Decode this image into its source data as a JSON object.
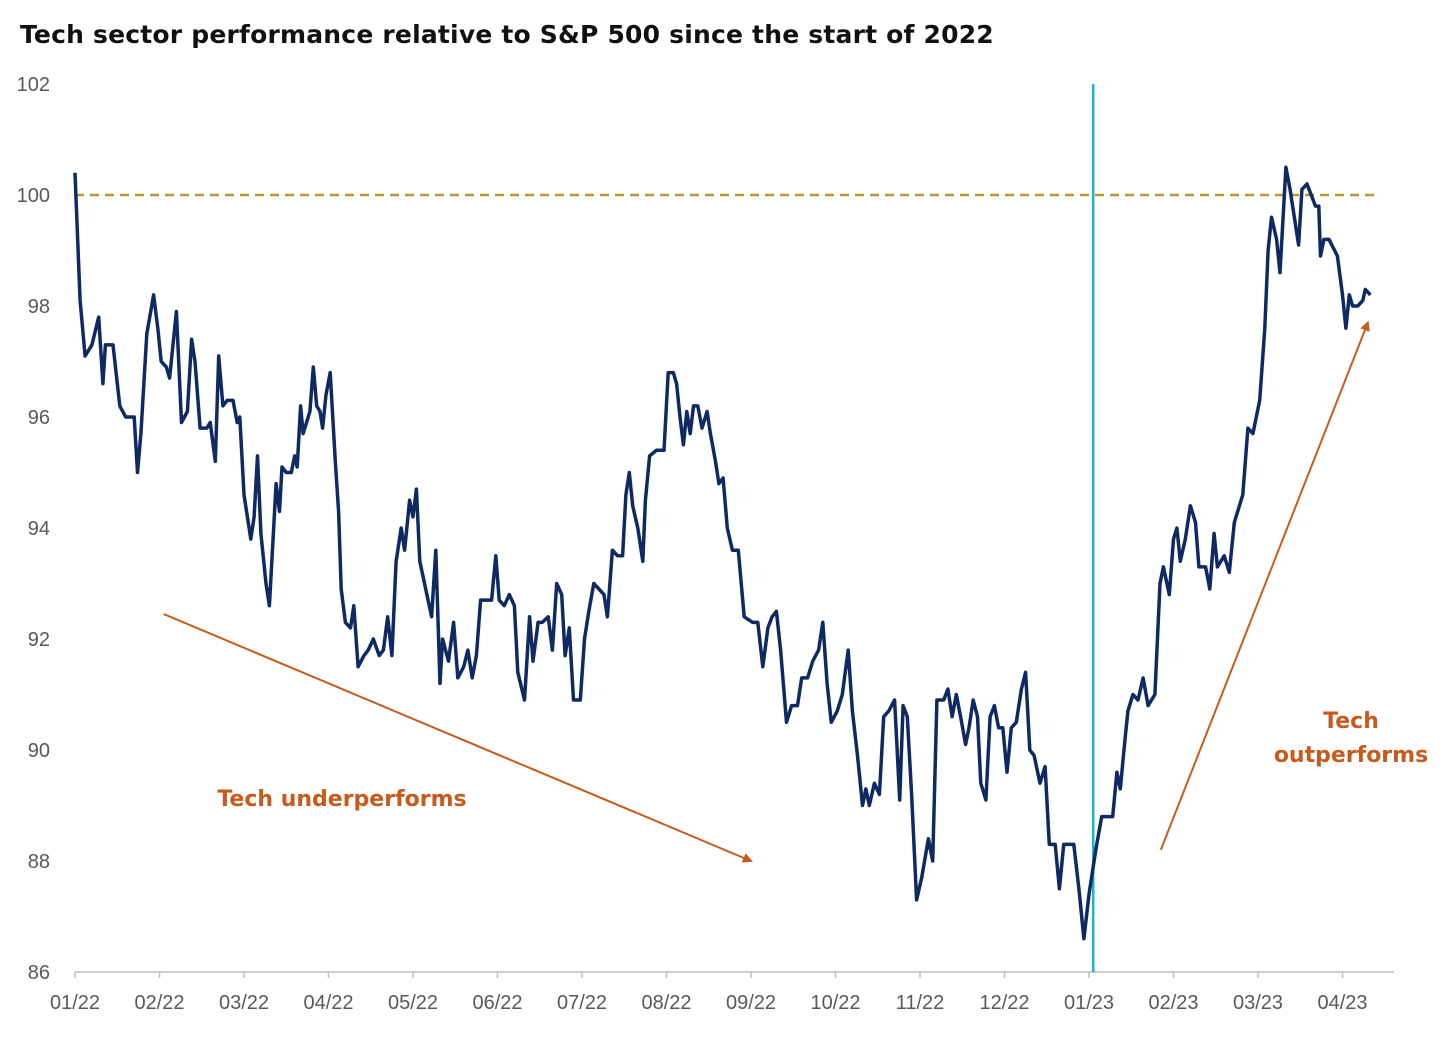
{
  "colors": {
    "series": "#0f2a63",
    "reference_line": "#b89a2a",
    "marker_line": "#14b7cf",
    "annotation": "#c75b1e",
    "axis": "#bfbfbf"
  },
  "chart_data": {
    "type": "line",
    "title": "Tech sector performance relative to S&P 500 since the start of 2022",
    "xlabel": "",
    "ylabel": "",
    "ylim": [
      86,
      102
    ],
    "y_ticks": [
      "102",
      "100",
      "98",
      "96",
      "94",
      "92",
      "90",
      "88",
      "86"
    ],
    "x_ticks": [
      "01/22",
      "02/22",
      "03/22",
      "04/22",
      "05/22",
      "06/22",
      "07/22",
      "08/22",
      "09/22",
      "10/22",
      "11/22",
      "12/22",
      "01/23",
      "02/23",
      "03/23",
      "04/23"
    ],
    "x_unit": "month index (0 = 01/22)",
    "xlim": [
      0,
      15.6
    ],
    "reference_line": {
      "y": 100,
      "style": "dashed"
    },
    "vertical_marker": {
      "x": 12.05
    },
    "grid": false,
    "series": [
      {
        "values": [
          [
            0.0,
            100.4
          ],
          [
            0.06,
            98.1
          ],
          [
            0.12,
            97.1
          ],
          [
            0.2,
            97.3
          ],
          [
            0.28,
            97.8
          ],
          [
            0.33,
            96.6
          ],
          [
            0.36,
            97.3
          ],
          [
            0.45,
            97.3
          ],
          [
            0.53,
            96.2
          ],
          [
            0.6,
            96.0
          ],
          [
            0.7,
            96.0
          ],
          [
            0.74,
            95.0
          ],
          [
            0.78,
            95.7
          ],
          [
            0.85,
            97.5
          ],
          [
            0.93,
            98.2
          ],
          [
            0.98,
            97.6
          ],
          [
            1.02,
            97.0
          ],
          [
            1.08,
            96.9
          ],
          [
            1.12,
            96.7
          ],
          [
            1.2,
            97.9
          ],
          [
            1.26,
            95.9
          ],
          [
            1.33,
            96.1
          ],
          [
            1.38,
            97.4
          ],
          [
            1.42,
            97.0
          ],
          [
            1.48,
            95.8
          ],
          [
            1.56,
            95.8
          ],
          [
            1.6,
            95.9
          ],
          [
            1.66,
            95.2
          ],
          [
            1.7,
            97.1
          ],
          [
            1.75,
            96.2
          ],
          [
            1.8,
            96.3
          ],
          [
            1.87,
            96.3
          ],
          [
            1.92,
            95.9
          ],
          [
            1.95,
            96.0
          ],
          [
            2.0,
            94.6
          ],
          [
            2.08,
            93.8
          ],
          [
            2.12,
            94.2
          ],
          [
            2.16,
            95.3
          ],
          [
            2.2,
            93.9
          ],
          [
            2.26,
            93.0
          ],
          [
            2.3,
            92.6
          ],
          [
            2.38,
            94.8
          ],
          [
            2.42,
            94.3
          ],
          [
            2.45,
            95.1
          ],
          [
            2.5,
            95.0
          ],
          [
            2.56,
            95.0
          ],
          [
            2.6,
            95.3
          ],
          [
            2.63,
            95.1
          ],
          [
            2.67,
            96.2
          ],
          [
            2.7,
            95.7
          ],
          [
            2.78,
            96.1
          ],
          [
            2.82,
            96.9
          ],
          [
            2.86,
            96.2
          ],
          [
            2.9,
            96.1
          ],
          [
            2.93,
            95.8
          ],
          [
            2.97,
            96.4
          ],
          [
            3.02,
            96.8
          ],
          [
            3.08,
            95.2
          ],
          [
            3.12,
            94.3
          ],
          [
            3.15,
            92.9
          ],
          [
            3.2,
            92.3
          ],
          [
            3.26,
            92.2
          ],
          [
            3.3,
            92.6
          ],
          [
            3.35,
            91.5
          ],
          [
            3.42,
            91.7
          ],
          [
            3.47,
            91.8
          ],
          [
            3.53,
            92.0
          ],
          [
            3.6,
            91.7
          ],
          [
            3.65,
            91.8
          ],
          [
            3.7,
            92.4
          ],
          [
            3.75,
            91.7
          ],
          [
            3.8,
            93.4
          ],
          [
            3.86,
            94.0
          ],
          [
            3.9,
            93.6
          ],
          [
            3.96,
            94.5
          ],
          [
            4.0,
            94.2
          ],
          [
            4.04,
            94.7
          ],
          [
            4.08,
            93.4
          ],
          [
            4.15,
            92.9
          ],
          [
            4.22,
            92.4
          ],
          [
            4.27,
            93.6
          ],
          [
            4.32,
            91.2
          ],
          [
            4.35,
            92.0
          ],
          [
            4.42,
            91.6
          ],
          [
            4.48,
            92.3
          ],
          [
            4.53,
            91.3
          ],
          [
            4.6,
            91.5
          ],
          [
            4.65,
            91.8
          ],
          [
            4.7,
            91.3
          ],
          [
            4.75,
            91.7
          ],
          [
            4.8,
            92.7
          ],
          [
            4.88,
            92.7
          ],
          [
            4.93,
            92.7
          ],
          [
            4.98,
            93.5
          ],
          [
            5.02,
            92.7
          ],
          [
            5.08,
            92.6
          ],
          [
            5.14,
            92.8
          ],
          [
            5.2,
            92.6
          ],
          [
            5.24,
            91.4
          ],
          [
            5.32,
            90.9
          ],
          [
            5.38,
            92.4
          ],
          [
            5.42,
            91.6
          ],
          [
            5.48,
            92.3
          ],
          [
            5.53,
            92.3
          ],
          [
            5.6,
            92.4
          ],
          [
            5.65,
            91.8
          ],
          [
            5.7,
            93.0
          ],
          [
            5.76,
            92.8
          ],
          [
            5.8,
            91.7
          ],
          [
            5.85,
            92.2
          ],
          [
            5.9,
            90.9
          ],
          [
            5.98,
            90.9
          ],
          [
            6.03,
            92.0
          ],
          [
            6.08,
            92.5
          ],
          [
            6.14,
            93.0
          ],
          [
            6.2,
            92.9
          ],
          [
            6.26,
            92.8
          ],
          [
            6.3,
            92.4
          ],
          [
            6.36,
            93.6
          ],
          [
            6.42,
            93.5
          ],
          [
            6.48,
            93.5
          ],
          [
            6.52,
            94.6
          ],
          [
            6.56,
            95.0
          ],
          [
            6.6,
            94.4
          ],
          [
            6.66,
            94.0
          ],
          [
            6.72,
            93.4
          ],
          [
            6.75,
            94.5
          ],
          [
            6.8,
            95.3
          ],
          [
            6.88,
            95.4
          ],
          [
            6.97,
            95.4
          ],
          [
            7.02,
            96.8
          ],
          [
            7.08,
            96.8
          ],
          [
            7.12,
            96.6
          ],
          [
            7.16,
            96.0
          ],
          [
            7.2,
            95.5
          ],
          [
            7.24,
            96.1
          ],
          [
            7.28,
            95.7
          ],
          [
            7.32,
            96.2
          ],
          [
            7.37,
            96.2
          ],
          [
            7.42,
            95.8
          ],
          [
            7.48,
            96.1
          ],
          [
            7.52,
            95.7
          ],
          [
            7.58,
            95.2
          ],
          [
            7.62,
            94.8
          ],
          [
            7.67,
            94.9
          ],
          [
            7.72,
            94.0
          ],
          [
            7.78,
            93.6
          ],
          [
            7.85,
            93.6
          ],
          [
            7.92,
            92.4
          ],
          [
            8.02,
            92.3
          ],
          [
            8.08,
            92.3
          ],
          [
            8.14,
            91.5
          ],
          [
            8.2,
            92.2
          ],
          [
            8.25,
            92.4
          ],
          [
            8.3,
            92.5
          ],
          [
            8.35,
            91.8
          ],
          [
            8.42,
            90.5
          ],
          [
            8.48,
            90.8
          ],
          [
            8.55,
            90.8
          ],
          [
            8.6,
            91.3
          ],
          [
            8.67,
            91.3
          ],
          [
            8.73,
            91.6
          ],
          [
            8.8,
            91.8
          ],
          [
            8.85,
            92.3
          ],
          [
            8.9,
            91.2
          ],
          [
            8.95,
            90.5
          ],
          [
            9.02,
            90.7
          ],
          [
            9.08,
            91.0
          ],
          [
            9.15,
            91.8
          ],
          [
            9.2,
            90.7
          ],
          [
            9.26,
            89.9
          ],
          [
            9.32,
            89.0
          ],
          [
            9.36,
            89.3
          ],
          [
            9.4,
            89.0
          ],
          [
            9.46,
            89.4
          ],
          [
            9.52,
            89.2
          ],
          [
            9.57,
            90.6
          ],
          [
            9.63,
            90.7
          ],
          [
            9.7,
            90.9
          ],
          [
            9.76,
            89.1
          ],
          [
            9.8,
            90.8
          ],
          [
            9.85,
            90.6
          ],
          [
            9.9,
            89.2
          ],
          [
            9.96,
            87.3
          ],
          [
            10.02,
            87.7
          ],
          [
            10.1,
            88.4
          ],
          [
            10.15,
            88.0
          ],
          [
            10.2,
            90.9
          ],
          [
            10.28,
            90.9
          ],
          [
            10.33,
            91.1
          ],
          [
            10.38,
            90.6
          ],
          [
            10.43,
            91.0
          ],
          [
            10.48,
            90.6
          ],
          [
            10.54,
            90.1
          ],
          [
            10.58,
            90.4
          ],
          [
            10.63,
            90.9
          ],
          [
            10.68,
            90.6
          ],
          [
            10.72,
            89.4
          ],
          [
            10.78,
            89.1
          ],
          [
            10.83,
            90.6
          ],
          [
            10.88,
            90.8
          ],
          [
            10.93,
            90.4
          ],
          [
            10.98,
            90.4
          ],
          [
            11.03,
            89.6
          ],
          [
            11.08,
            90.4
          ],
          [
            11.14,
            90.5
          ],
          [
            11.2,
            91.1
          ],
          [
            11.25,
            91.4
          ],
          [
            11.3,
            90.0
          ],
          [
            11.35,
            89.9
          ],
          [
            11.42,
            89.4
          ],
          [
            11.48,
            89.7
          ],
          [
            11.53,
            88.3
          ],
          [
            11.6,
            88.3
          ],
          [
            11.65,
            87.5
          ],
          [
            11.7,
            88.3
          ],
          [
            11.75,
            88.3
          ],
          [
            11.82,
            88.3
          ],
          [
            11.88,
            87.5
          ],
          [
            11.94,
            86.6
          ],
          [
            12.0,
            87.4
          ],
          [
            12.08,
            88.2
          ],
          [
            12.15,
            88.8
          ],
          [
            12.22,
            88.8
          ],
          [
            12.28,
            88.8
          ],
          [
            12.33,
            89.6
          ],
          [
            12.37,
            89.3
          ],
          [
            12.42,
            90.1
          ],
          [
            12.46,
            90.7
          ],
          [
            12.52,
            91.0
          ],
          [
            12.58,
            90.9
          ],
          [
            12.64,
            91.3
          ],
          [
            12.7,
            90.8
          ],
          [
            12.78,
            91.0
          ],
          [
            12.84,
            93.0
          ],
          [
            12.88,
            93.3
          ],
          [
            12.95,
            92.8
          ],
          [
            13.0,
            93.8
          ],
          [
            13.04,
            94.0
          ],
          [
            13.08,
            93.4
          ],
          [
            13.14,
            93.8
          ],
          [
            13.2,
            94.4
          ],
          [
            13.26,
            94.1
          ],
          [
            13.3,
            93.3
          ],
          [
            13.38,
            93.3
          ],
          [
            13.43,
            92.9
          ],
          [
            13.48,
            93.9
          ],
          [
            13.52,
            93.3
          ],
          [
            13.6,
            93.5
          ],
          [
            13.66,
            93.2
          ],
          [
            13.72,
            94.1
          ],
          [
            13.82,
            94.6
          ],
          [
            13.88,
            95.8
          ],
          [
            13.94,
            95.7
          ],
          [
            14.02,
            96.3
          ],
          [
            14.08,
            97.6
          ],
          [
            14.12,
            99.0
          ],
          [
            14.16,
            99.6
          ],
          [
            14.22,
            99.2
          ],
          [
            14.26,
            98.6
          ],
          [
            14.33,
            100.5
          ],
          [
            14.38,
            100.1
          ],
          [
            14.44,
            99.5
          ],
          [
            14.48,
            99.1
          ],
          [
            14.52,
            100.1
          ],
          [
            14.58,
            100.2
          ],
          [
            14.63,
            100.0
          ],
          [
            14.68,
            99.8
          ],
          [
            14.72,
            99.8
          ],
          [
            14.74,
            98.9
          ],
          [
            14.78,
            99.2
          ],
          [
            14.84,
            99.2
          ],
          [
            14.94,
            98.9
          ],
          [
            15.0,
            98.2
          ],
          [
            15.04,
            97.6
          ],
          [
            15.08,
            98.2
          ],
          [
            15.12,
            98.0
          ],
          [
            15.18,
            98.0
          ],
          [
            15.24,
            98.1
          ],
          [
            15.27,
            98.3
          ],
          [
            15.33,
            98.2
          ]
        ]
      }
    ],
    "annotations": [
      {
        "text": "Tech underperforms"
      },
      {
        "text_line1": "Tech",
        "text_line2": "outperforms"
      }
    ],
    "trend_arrows": [
      {
        "from": [
          1.05,
          92.45
        ],
        "to": [
          8.0,
          88.0
        ]
      },
      {
        "from": [
          12.85,
          88.2
        ],
        "to": [
          15.3,
          97.7
        ]
      }
    ]
  }
}
